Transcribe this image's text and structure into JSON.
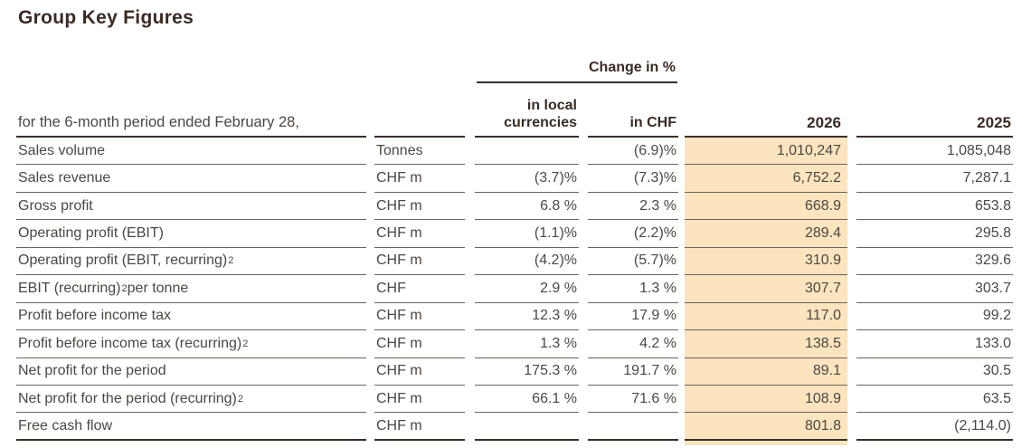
{
  "page_title": "Group Key Figures",
  "colors": {
    "highlight_2026_column": "#FBE4BE",
    "heading_text": "#3A2B24",
    "body_text": "#4D4742",
    "row_border": "#6A645E",
    "strong_border": "#3A3029"
  },
  "table": {
    "change_in_pct_label": "Change in %",
    "period_label": "for the 6-month period ended February 28,",
    "col_headers": {
      "local_line1": "in local",
      "local_line2": "currencies",
      "chf": "in CHF",
      "y2026": "2026",
      "y2025": "2025"
    },
    "rows": [
      {
        "label": "Sales volume",
        "sup": "",
        "label_post": "",
        "unit": "Tonnes",
        "local": "",
        "chf": "(6.9)%",
        "y2026": "1,010,247",
        "y2025": "1,085,048"
      },
      {
        "label": "Sales revenue",
        "sup": "",
        "label_post": "",
        "unit": "CHF m",
        "local": "(3.7)%",
        "chf": "(7.3)%",
        "y2026": "6,752.2",
        "y2025": "7,287.1"
      },
      {
        "label": "Gross profit",
        "sup": "",
        "label_post": "",
        "unit": "CHF m",
        "local": "6.8 %",
        "chf": "2.3 %",
        "y2026": "668.9",
        "y2025": "653.8"
      },
      {
        "label": "Operating profit (EBIT)",
        "sup": "",
        "label_post": "",
        "unit": "CHF m",
        "local": "(1.1)%",
        "chf": "(2.2)%",
        "y2026": "289.4",
        "y2025": "295.8"
      },
      {
        "label": "Operating profit (EBIT, recurring)",
        "sup": "2",
        "label_post": "",
        "unit": "CHF m",
        "local": "(4.2)%",
        "chf": "(5.7)%",
        "y2026": "310.9",
        "y2025": "329.6"
      },
      {
        "label": "EBIT (recurring)",
        "sup": "2",
        "label_post": " per tonne",
        "unit": "CHF",
        "local": "2.9 %",
        "chf": "1.3 %",
        "y2026": "307.7",
        "y2025": "303.7"
      },
      {
        "label": "Profit before income tax",
        "sup": "",
        "label_post": "",
        "unit": "CHF m",
        "local": "12.3 %",
        "chf": "17.9 %",
        "y2026": "117.0",
        "y2025": "99.2"
      },
      {
        "label": "Profit before income tax (recurring)",
        "sup": "2",
        "label_post": "",
        "unit": "CHF m",
        "local": "1.3 %",
        "chf": "4.2 %",
        "y2026": "138.5",
        "y2025": "133.0"
      },
      {
        "label": "Net profit for the period",
        "sup": "",
        "label_post": "",
        "unit": "CHF m",
        "local": "175.3 %",
        "chf": "191.7 %",
        "y2026": "89.1",
        "y2025": "30.5"
      },
      {
        "label": "Net profit for the period (recurring)",
        "sup": "2",
        "label_post": "",
        "unit": "CHF m",
        "local": "66.1 %",
        "chf": "71.6 %",
        "y2026": "108.9",
        "y2025": "63.5"
      },
      {
        "label": "Free cash flow",
        "sup": "",
        "label_post": "",
        "unit": "CHF m",
        "local": "",
        "chf": "",
        "y2026": "801.8",
        "y2025": "(2,114.0)"
      }
    ]
  }
}
